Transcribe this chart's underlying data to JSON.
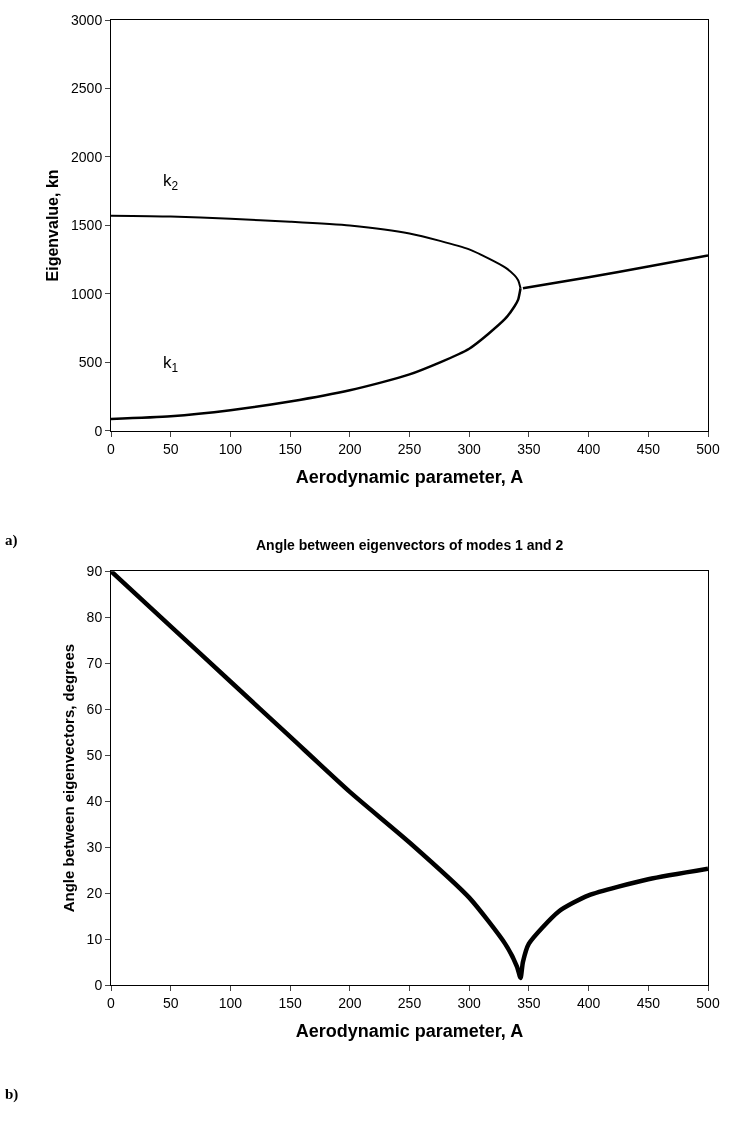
{
  "chart_data": [
    {
      "type": "line",
      "xlabel": "Aerodynamic parameter, A",
      "ylabel": "Eigenvalue, kn",
      "series": [
        {
          "color": "#000000",
          "x": [
            0,
            50,
            100,
            150,
            200,
            250,
            300,
            330,
            338,
            341,
            343
          ],
          "values": [
            1571,
            1565,
            1548,
            1527,
            1499,
            1441,
            1325,
            1194,
            1135,
            1100,
            1041
          ]
        },
        {
          "color": "#000000",
          "x": [
            0,
            50,
            100,
            150,
            200,
            250,
            300,
            330,
            338,
            341,
            343
          ],
          "values": [
            87,
            107,
            151,
            214,
            296,
            412,
            600,
            817,
            910,
            958,
            1041
          ]
        },
        {
          "color": "#000000",
          "x": [
            345,
            400,
            450,
            500
          ],
          "values": [
            1041,
            1122,
            1200,
            1281
          ]
        }
      ],
      "xlim": [
        0,
        500
      ],
      "xticks": [
        0,
        50,
        100,
        150,
        200,
        250,
        300,
        350,
        400,
        450,
        500
      ],
      "ylim": [
        0,
        3000
      ],
      "yticks": [
        0,
        500,
        1000,
        1500,
        2000,
        2500,
        3000
      ],
      "annotations": [
        "k$_{2}$",
        "k$_{1}$",
        "a)"
      ]
    },
    {
      "type": "line",
      "title": "Angle between eigenvectors of modes 1 and 2",
      "xlabel": "Aerodynamic parameter, A",
      "ylabel": "Angle between eigenvectors, degrees",
      "series": [
        {
          "color": "#000000",
          "x": [
            0,
            50,
            100,
            150,
            200,
            250,
            300,
            330,
            340,
            343,
            345,
            350,
            375,
            400,
            450,
            500
          ],
          "values": [
            90,
            78,
            66,
            54,
            42,
            31,
            19,
            9,
            4,
            1.5,
            5,
            9,
            16,
            19.5,
            23,
            25.3
          ]
        }
      ],
      "xlim": [
        0,
        500
      ],
      "xticks": [
        0,
        50,
        100,
        150,
        200,
        250,
        300,
        350,
        400,
        450,
        500
      ],
      "ylim": [
        0,
        90
      ],
      "yticks": [
        0,
        10,
        20,
        30,
        40,
        50,
        60,
        70,
        80,
        90
      ],
      "annotations": [
        "b)"
      ]
    }
  ]
}
